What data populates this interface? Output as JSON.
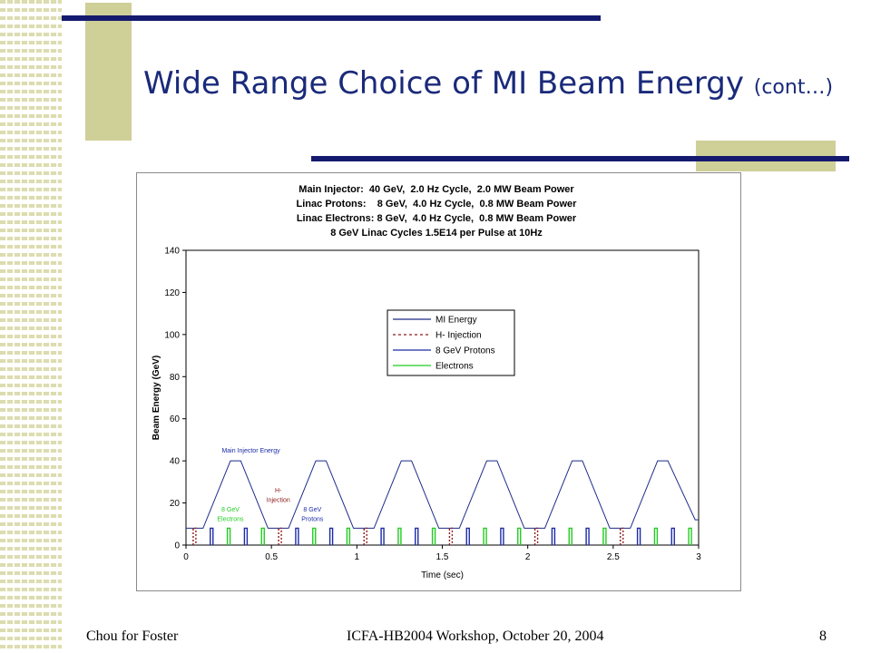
{
  "slide": {
    "title": "Wide Range Choice of MI Beam Energy",
    "title_suffix": "(cont…)",
    "footer_left": "Chou for Foster",
    "footer_center": "ICFA-HB2004 Workshop, October 20, 2004",
    "footer_right": "8",
    "colors": {
      "title": "#1a2a7a",
      "accent_bar": "#141a6e",
      "accent_block": "#cfcf98"
    }
  },
  "chart_data": {
    "type": "line",
    "title_lines": [
      "Main Injector:  40 GeV,  2.0 Hz Cycle,  2.0 MW Beam Power",
      "Linac Protons:    8 GeV,  4.0 Hz Cycle,  0.8 MW Beam Power",
      "Linac Electrons: 8 GeV,  4.0 Hz Cycle,  0.8 MW Beam Power",
      "8 GeV Linac Cycles 1.5E14 per Pulse at 10Hz"
    ],
    "xlabel": "Time (sec)",
    "ylabel": "Beam Energy (GeV)",
    "xlim": [
      0,
      3
    ],
    "ylim": [
      0,
      140
    ],
    "x_ticks": [
      0,
      0.5,
      1,
      1.5,
      2,
      2.5,
      3
    ],
    "x_tick_labels": [
      "0",
      "0.5",
      "1",
      "1.5",
      "2",
      "2.5",
      "3"
    ],
    "y_ticks": [
      0,
      20,
      40,
      60,
      80,
      100,
      120,
      140
    ],
    "y_tick_labels": [
      "0",
      "20",
      "40",
      "60",
      "80",
      "100",
      "120",
      "140"
    ],
    "legend_position": "upper-center",
    "series": [
      {
        "name": "MI Energy",
        "color": "#1c2a88",
        "dash": "solid",
        "x": [
          0.0,
          0.06,
          0.1,
          0.26,
          0.32,
          0.48,
          0.52,
          0.56,
          0.6,
          0.76,
          0.82,
          0.98,
          1.02,
          1.06,
          1.1,
          1.26,
          1.32,
          1.48,
          1.52,
          1.56,
          1.6,
          1.76,
          1.82,
          1.98,
          2.02,
          2.06,
          2.1,
          2.26,
          2.32,
          2.48,
          2.52,
          2.56,
          2.6,
          2.76,
          2.82,
          2.98,
          3.0
        ],
        "y": [
          8,
          8,
          8,
          40,
          40,
          8,
          8,
          8,
          8,
          40,
          40,
          8,
          8,
          8,
          8,
          40,
          40,
          8,
          8,
          8,
          8,
          40,
          40,
          8,
          8,
          8,
          8,
          40,
          40,
          8,
          8,
          8,
          8,
          40,
          40,
          12,
          12
        ]
      },
      {
        "name": "H- Injection",
        "color": "#8b1a1a",
        "dash": "dashed",
        "pulse_x": [
          0.05,
          0.55,
          1.05,
          1.55,
          2.05,
          2.55
        ],
        "pulse_height": 8
      },
      {
        "name": "8 GeV Protons",
        "color": "#1c2aa8",
        "dash": "solid",
        "pulse_x": [
          0.15,
          0.35,
          0.65,
          0.85,
          1.15,
          1.35,
          1.65,
          1.85,
          2.15,
          2.35,
          2.65,
          2.85
        ],
        "pulse_height": 8
      },
      {
        "name": "Electrons",
        "color": "#22cc22",
        "dash": "solid",
        "pulse_x": [
          0.25,
          0.45,
          0.75,
          0.95,
          1.25,
          1.45,
          1.75,
          1.95,
          2.25,
          2.45,
          2.75,
          2.95
        ],
        "pulse_height": 8
      }
    ],
    "annotations": [
      {
        "text": "Main Injector Energy",
        "x": 0.38,
        "y": 44,
        "color": "#1c2aa8"
      },
      {
        "text": "H-",
        "x": 0.54,
        "y": 25,
        "color": "#8b1a1a"
      },
      {
        "text": "Injection",
        "x": 0.54,
        "y": 20.5,
        "color": "#8b1a1a"
      },
      {
        "text": "8 GeV",
        "x": 0.74,
        "y": 16,
        "color": "#1c2aa8"
      },
      {
        "text": "Protons",
        "x": 0.74,
        "y": 11.5,
        "color": "#1c2aa8"
      },
      {
        "text": "8 GeV",
        "x": 0.26,
        "y": 16,
        "color": "#22cc22"
      },
      {
        "text": "Electrons",
        "x": 0.26,
        "y": 11.5,
        "color": "#22cc22"
      }
    ]
  }
}
